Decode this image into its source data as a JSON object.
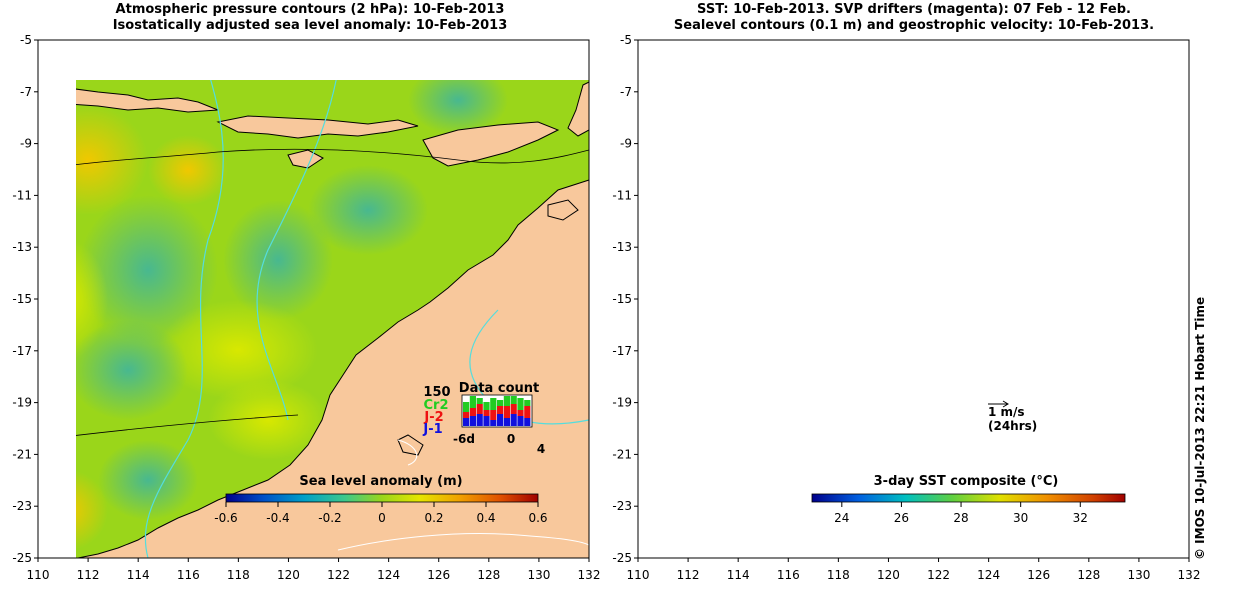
{
  "left_panel": {
    "title_line1": "Atmospheric pressure contours (2 hPa): 10-Feb-2013",
    "title_line2": "Isostatically adjusted sea level anomaly: 10-Feb-2013",
    "colorbar": {
      "title": "Sea level anomaly (m)",
      "ticks": [
        "-0.6",
        "-0.4",
        "-0.2",
        "0",
        "0.2",
        "0.4",
        "0.6"
      ],
      "range": [
        -0.6,
        0.6
      ]
    },
    "data_count": {
      "title": "Data count",
      "max_label": "150",
      "series": [
        {
          "label": "Cr2",
          "color": "#22cc22"
        },
        {
          "label": "J-2",
          "color": "#ee1111"
        },
        {
          "label": "J-1",
          "color": "#1111dd"
        }
      ],
      "x_ticks": [
        "-6d",
        "0",
        "4"
      ]
    }
  },
  "right_panel": {
    "title_line1": "SST: 10-Feb-2013. SVP drifters (magenta): 07 Feb - 12 Feb.",
    "title_line2": "Sealevel contours (0.1 m) and geostrophic velocity: 10-Feb-2013.",
    "colorbar": {
      "title": "3-day SST composite (°C)",
      "ticks": [
        "24",
        "26",
        "28",
        "30",
        "32"
      ],
      "range": [
        23,
        33.5
      ]
    },
    "velocity_scale": {
      "label1": "1 m/s",
      "label2": "(24hrs)"
    }
  },
  "axes": {
    "lon_ticks": [
      "110",
      "112",
      "114",
      "116",
      "118",
      "120",
      "122",
      "124",
      "126",
      "128",
      "130",
      "132"
    ],
    "lat_ticks": [
      "-5",
      "-7",
      "-9",
      "-11",
      "-13",
      "-15",
      "-17",
      "-19",
      "-21",
      "-23",
      "-25"
    ],
    "lon_range": [
      110,
      132
    ],
    "lat_range": [
      -25,
      -5
    ]
  },
  "credit": "© IMOS 10-Jul-2013 22:21 Hobart Time",
  "colors": {
    "land": "#f8c89c",
    "sla_background": "#9ad61a",
    "sst_background": "#c65a10",
    "contour": "#55dddd"
  }
}
